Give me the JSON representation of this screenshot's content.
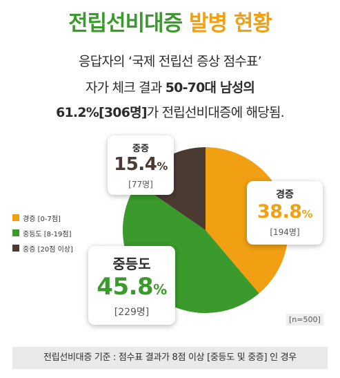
{
  "header": {
    "title_part1": "전립선비대증",
    "title_part2": "발병 현황",
    "line1": "응답자의 ‘국제 전립선 증상 점수표’",
    "line2_pre": "자가 체크 결과",
    "line2_bold": "50-70대 남성의",
    "line3_bold": "61.2%[306명]",
    "line3_post": "가 전립선비대증에 해당됨."
  },
  "chart_data": {
    "type": "pie",
    "slices": [
      {
        "name": "경증",
        "value": 38.8,
        "count": "[194명]",
        "legend": "경증 [0-7점]",
        "color": "#f0a012"
      },
      {
        "name": "중등도",
        "value": 45.8,
        "count": "[229명]",
        "legend": "중등도 [8-19점]",
        "color": "#3a9a2b"
      },
      {
        "name": "중증",
        "value": 15.4,
        "count": "[77명]",
        "legend": "중증 [20점 이상]",
        "color": "#4a3a32"
      }
    ],
    "value_suffix": "%",
    "n_label": "[n=500]",
    "legend_position": "left"
  },
  "footer": {
    "note": "전립선비대증 기준 : 점수표 결과가 8점 이상 [중등도 및 중증] 인 경우"
  }
}
